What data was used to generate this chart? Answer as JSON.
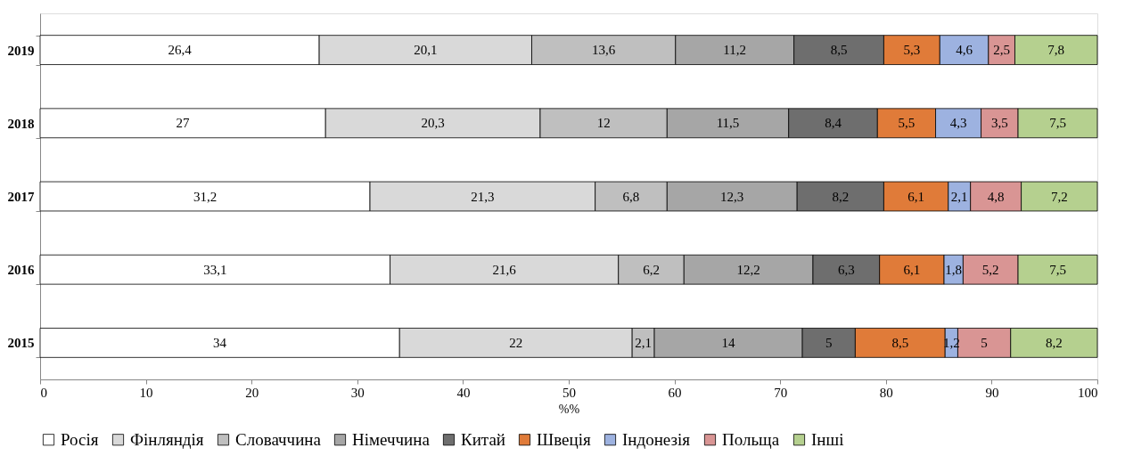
{
  "chart_data": {
    "type": "bar",
    "orientation": "horizontal",
    "stacked": true,
    "xlabel": "%%",
    "categories": [
      "2019",
      "2018",
      "2017",
      "2016",
      "2015"
    ],
    "xlim": [
      0,
      100
    ],
    "xticks": [
      0,
      10,
      20,
      30,
      40,
      50,
      60,
      70,
      80,
      90,
      100
    ],
    "grid": false,
    "legend": "bottom",
    "series": [
      {
        "name": "Росія",
        "color": "#ffffff",
        "values": [
          26.4,
          27,
          31.2,
          33.1,
          34
        ],
        "value_labels": [
          "26,4",
          "27",
          "31,2",
          "33,1",
          "34"
        ]
      },
      {
        "name": "Фінляндія",
        "color": "#d9d9d9",
        "values": [
          20.1,
          20.3,
          21.3,
          21.6,
          22
        ],
        "value_labels": [
          "20,1",
          "20,3",
          "21,3",
          "21,6",
          "22"
        ]
      },
      {
        "name": "Словаччина",
        "color": "#bfbfbf",
        "values": [
          13.6,
          12,
          6.8,
          6.2,
          2.1
        ],
        "value_labels": [
          "13,6",
          "12",
          "6,8",
          "6,2",
          "2,1"
        ]
      },
      {
        "name": "Німеччина",
        "color": "#a6a6a6",
        "values": [
          11.2,
          11.5,
          12.3,
          12.2,
          14
        ],
        "value_labels": [
          "11,2",
          "11,5",
          "12,3",
          "12,2",
          "14"
        ]
      },
      {
        "name": "Китай",
        "color": "#6e6e6e",
        "values": [
          8.5,
          8.4,
          8.2,
          6.3,
          5
        ],
        "value_labels": [
          "8,5",
          "8,4",
          "8,2",
          "6,3",
          "5"
        ]
      },
      {
        "name": "Швеція",
        "color": "#e07b39",
        "values": [
          5.3,
          5.5,
          6.1,
          6.1,
          8.5
        ],
        "value_labels": [
          "5,3",
          "5,5",
          "6,1",
          "6,1",
          "8,5"
        ]
      },
      {
        "name": "Індонезія",
        "color": "#9db2e0",
        "values": [
          4.6,
          4.3,
          2.1,
          1.8,
          1.2
        ],
        "value_labels": [
          "4,6",
          "4,3",
          "2,1",
          "1,8",
          "1,2"
        ]
      },
      {
        "name": "Польща",
        "color": "#d99594",
        "values": [
          2.5,
          3.5,
          4.8,
          5.2,
          5
        ],
        "value_labels": [
          "2,5",
          "3,5",
          "4,8",
          "5,2",
          "5"
        ]
      },
      {
        "name": "Інші",
        "color": "#b5d08f",
        "values": [
          7.8,
          7.5,
          7.2,
          7.5,
          8.2
        ],
        "value_labels": [
          "7,8",
          "7,5",
          "7,2",
          "7,5",
          "8,2"
        ]
      }
    ]
  }
}
